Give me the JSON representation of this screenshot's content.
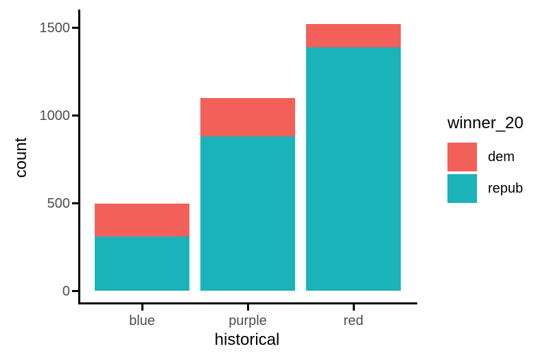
{
  "chart_data": {
    "type": "bar",
    "subtype": "stacked",
    "title": "",
    "xlabel": "historical",
    "ylabel": "count",
    "categories": [
      "blue",
      "purple",
      "red"
    ],
    "series": [
      {
        "name": "repub",
        "color": "#1AB3B9",
        "values": [
          310,
          880,
          1390
        ]
      },
      {
        "name": "dem",
        "color": "#F3605A",
        "values": [
          190,
          220,
          130
        ]
      }
    ],
    "stack_order_bottom_to_top": [
      "repub",
      "dem"
    ],
    "totals": [
      500,
      1100,
      1520
    ],
    "y_ticks": [
      0,
      500,
      1000,
      1500
    ],
    "ylim": [
      0,
      1596
    ],
    "grid": false,
    "legend": {
      "title": "winner_20",
      "position": "right",
      "entries": [
        {
          "label": "dem",
          "color": "#F3605A"
        },
        {
          "label": "repub",
          "color": "#1AB3B9"
        }
      ]
    },
    "theme": {
      "axis_text_color": "#4D4D4D",
      "axis_line_color": "#000000",
      "background": "#FFFFFF"
    }
  }
}
